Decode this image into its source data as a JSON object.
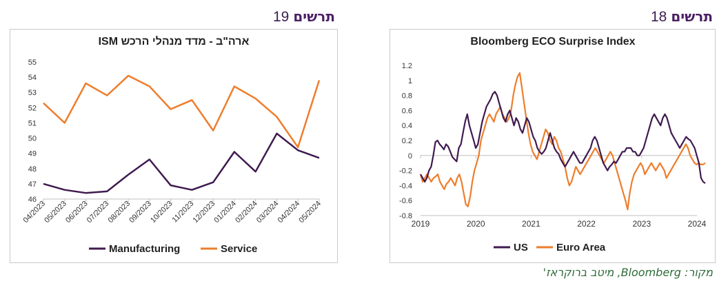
{
  "headings": {
    "left": {
      "word": "תרשים",
      "number": "19"
    },
    "right": {
      "word": "תרשים",
      "number": "18"
    }
  },
  "source_note": "מקור: Bloomberg, מיטב ברוקראז'",
  "colors": {
    "manufacturing": "#3f1a4f",
    "service": "#ee7d2b",
    "us": "#3f1a4f",
    "euro": "#ee7d2b",
    "heading": "#4a1f63",
    "source": "#2f6b3a"
  },
  "chart_data": [
    {
      "type": "line",
      "title": "ארה\"ב - מדד מנהלי הרכש ISM",
      "categories": [
        "04/2023",
        "05/2023",
        "06/2023",
        "07/2023",
        "08/2023",
        "09/2023",
        "10/2023",
        "11/2023",
        "12/2023",
        "01/2024",
        "02/2024",
        "03/2024",
        "04/2024",
        "05/2024"
      ],
      "series": [
        {
          "name": "Manufacturing",
          "values": [
            47.0,
            46.6,
            46.4,
            46.5,
            47.6,
            48.6,
            46.9,
            46.6,
            47.1,
            49.1,
            47.8,
            50.3,
            49.2,
            48.7
          ]
        },
        {
          "name": "Service",
          "values": [
            52.3,
            51.0,
            53.6,
            52.8,
            54.1,
            53.4,
            51.9,
            52.5,
            50.5,
            53.4,
            52.6,
            51.4,
            49.4,
            53.8
          ]
        }
      ],
      "ylim": [
        46,
        55
      ],
      "yticks": [
        46,
        47,
        48,
        49,
        50,
        51,
        52,
        53,
        54,
        55
      ],
      "grid": false,
      "legend": "bottom"
    },
    {
      "type": "line",
      "title": "Bloomberg ECO Surprise Index",
      "x_start": "2019-01",
      "x_step": "2 weeks",
      "xlim": [
        2019,
        2024
      ],
      "xticks": [
        "2019",
        "2020",
        "2021",
        "2022",
        "2023",
        "2024"
      ],
      "ylim": [
        -0.8,
        1.2
      ],
      "yticks": [
        "1.2",
        "1",
        "0.8",
        "0.6",
        "0.4",
        "0.2",
        "0",
        "-0.2",
        "-0.4",
        "-0.6",
        "-0.8"
      ],
      "grid": false,
      "legend": "bottom",
      "series": [
        {
          "name": "US",
          "values": [
            -0.25,
            -0.3,
            -0.35,
            -0.3,
            -0.2,
            -0.15,
            0.0,
            0.18,
            0.2,
            0.15,
            0.12,
            0.08,
            0.15,
            0.12,
            0.05,
            -0.02,
            -0.05,
            -0.08,
            0.1,
            0.15,
            0.3,
            0.45,
            0.55,
            0.4,
            0.3,
            0.2,
            0.1,
            0.15,
            0.3,
            0.45,
            0.55,
            0.65,
            0.7,
            0.75,
            0.82,
            0.85,
            0.8,
            0.7,
            0.6,
            0.5,
            0.45,
            0.55,
            0.6,
            0.5,
            0.4,
            0.5,
            0.45,
            0.35,
            0.3,
            0.4,
            0.5,
            0.45,
            0.35,
            0.25,
            0.2,
            0.1,
            0.05,
            0.02,
            0.05,
            0.1,
            0.2,
            0.3,
            0.2,
            0.1,
            0.05,
            0.02,
            -0.05,
            -0.1,
            -0.15,
            -0.1,
            -0.05,
            0.0,
            0.05,
            0.0,
            -0.05,
            -0.1,
            -0.1,
            -0.05,
            0.0,
            0.05,
            0.1,
            0.2,
            0.25,
            0.2,
            0.1,
            0.0,
            -0.1,
            -0.15,
            -0.2,
            -0.15,
            -0.12,
            -0.08,
            -0.1,
            -0.05,
            0.0,
            0.05,
            0.05,
            0.1,
            0.1,
            0.1,
            0.05,
            0.05,
            0.0,
            0.0,
            0.05,
            0.1,
            0.2,
            0.3,
            0.4,
            0.5,
            0.55,
            0.5,
            0.45,
            0.4,
            0.5,
            0.55,
            0.5,
            0.4,
            0.3,
            0.25,
            0.2,
            0.15,
            0.1,
            0.15,
            0.2,
            0.25,
            0.22,
            0.2,
            0.15,
            0.1,
            0.0,
            -0.1,
            -0.3,
            -0.35,
            -0.37
          ]
        },
        {
          "name": "Euro Area",
          "values": [
            -0.25,
            -0.35,
            -0.3,
            -0.25,
            -0.3,
            -0.35,
            -0.3,
            -0.28,
            -0.25,
            -0.35,
            -0.4,
            -0.45,
            -0.38,
            -0.35,
            -0.3,
            -0.35,
            -0.4,
            -0.3,
            -0.25,
            -0.35,
            -0.5,
            -0.65,
            -0.68,
            -0.55,
            -0.35,
            -0.2,
            -0.1,
            0.0,
            0.2,
            0.3,
            0.4,
            0.5,
            0.55,
            0.5,
            0.45,
            0.55,
            0.6,
            0.65,
            0.55,
            0.5,
            0.45,
            0.5,
            0.6,
            0.8,
            0.95,
            1.05,
            1.1,
            0.9,
            0.7,
            0.5,
            0.3,
            0.15,
            0.05,
            0.0,
            -0.05,
            0.05,
            0.15,
            0.25,
            0.35,
            0.3,
            0.2,
            0.15,
            0.25,
            0.2,
            0.1,
            0.05,
            -0.05,
            -0.15,
            -0.3,
            -0.4,
            -0.35,
            -0.25,
            -0.15,
            -0.2,
            -0.25,
            -0.2,
            -0.15,
            -0.1,
            -0.05,
            0.0,
            0.05,
            0.1,
            0.05,
            0.0,
            -0.05,
            -0.1,
            -0.05,
            0.0,
            0.05,
            0.0,
            -0.1,
            -0.2,
            -0.3,
            -0.4,
            -0.5,
            -0.6,
            -0.72,
            -0.5,
            -0.35,
            -0.25,
            -0.2,
            -0.15,
            -0.1,
            -0.15,
            -0.25,
            -0.2,
            -0.15,
            -0.1,
            -0.15,
            -0.2,
            -0.15,
            -0.1,
            -0.15,
            -0.2,
            -0.3,
            -0.25,
            -0.2,
            -0.15,
            -0.1,
            -0.05,
            0.0,
            0.05,
            0.1,
            0.15,
            0.1,
            0.0,
            -0.05,
            -0.1,
            -0.12,
            -0.1,
            -0.12,
            -0.12,
            -0.1
          ]
        }
      ]
    }
  ]
}
